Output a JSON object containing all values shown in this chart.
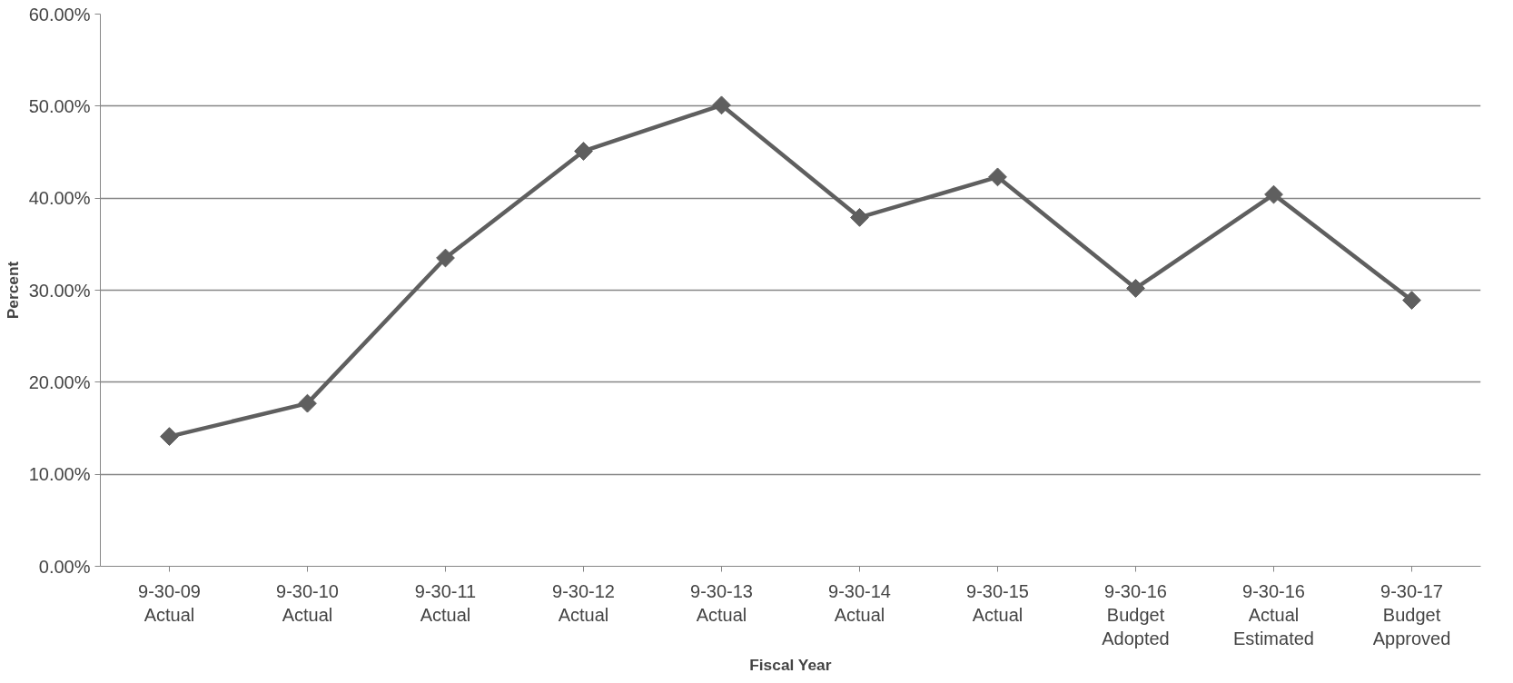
{
  "chart_data": {
    "type": "line",
    "xlabel": "Fiscal Year",
    "ylabel": "Percent",
    "categories": [
      "9-30-09\nActual",
      "9-30-10\nActual",
      "9-30-11\nActual",
      "9-30-12\nActual",
      "9-30-13\nActual",
      "9-30-14\nActual",
      "9-30-15\nActual",
      "9-30-16\nBudget\nAdopted",
      "9-30-16\nActual\nEstimated",
      "9-30-17\nBudget\nApproved"
    ],
    "series": [
      {
        "color": "#5f5f5f",
        "values": [
          14.1,
          17.7,
          33.5,
          45.1,
          50.1,
          37.9,
          42.3,
          30.2,
          40.4,
          28.9
        ]
      }
    ],
    "ylim": [
      0,
      60
    ],
    "yticks": [
      {
        "value": 0,
        "label": "0.00%"
      },
      {
        "value": 10,
        "label": "10.00%"
      },
      {
        "value": 20,
        "label": "20.00%"
      },
      {
        "value": 30,
        "label": "30.00%"
      },
      {
        "value": 40,
        "label": "40.00%"
      },
      {
        "value": 50,
        "label": "50.00%"
      },
      {
        "value": 60,
        "label": "60.00%"
      }
    ],
    "grid": "y",
    "marker": "diamond",
    "line_style": "solid"
  }
}
